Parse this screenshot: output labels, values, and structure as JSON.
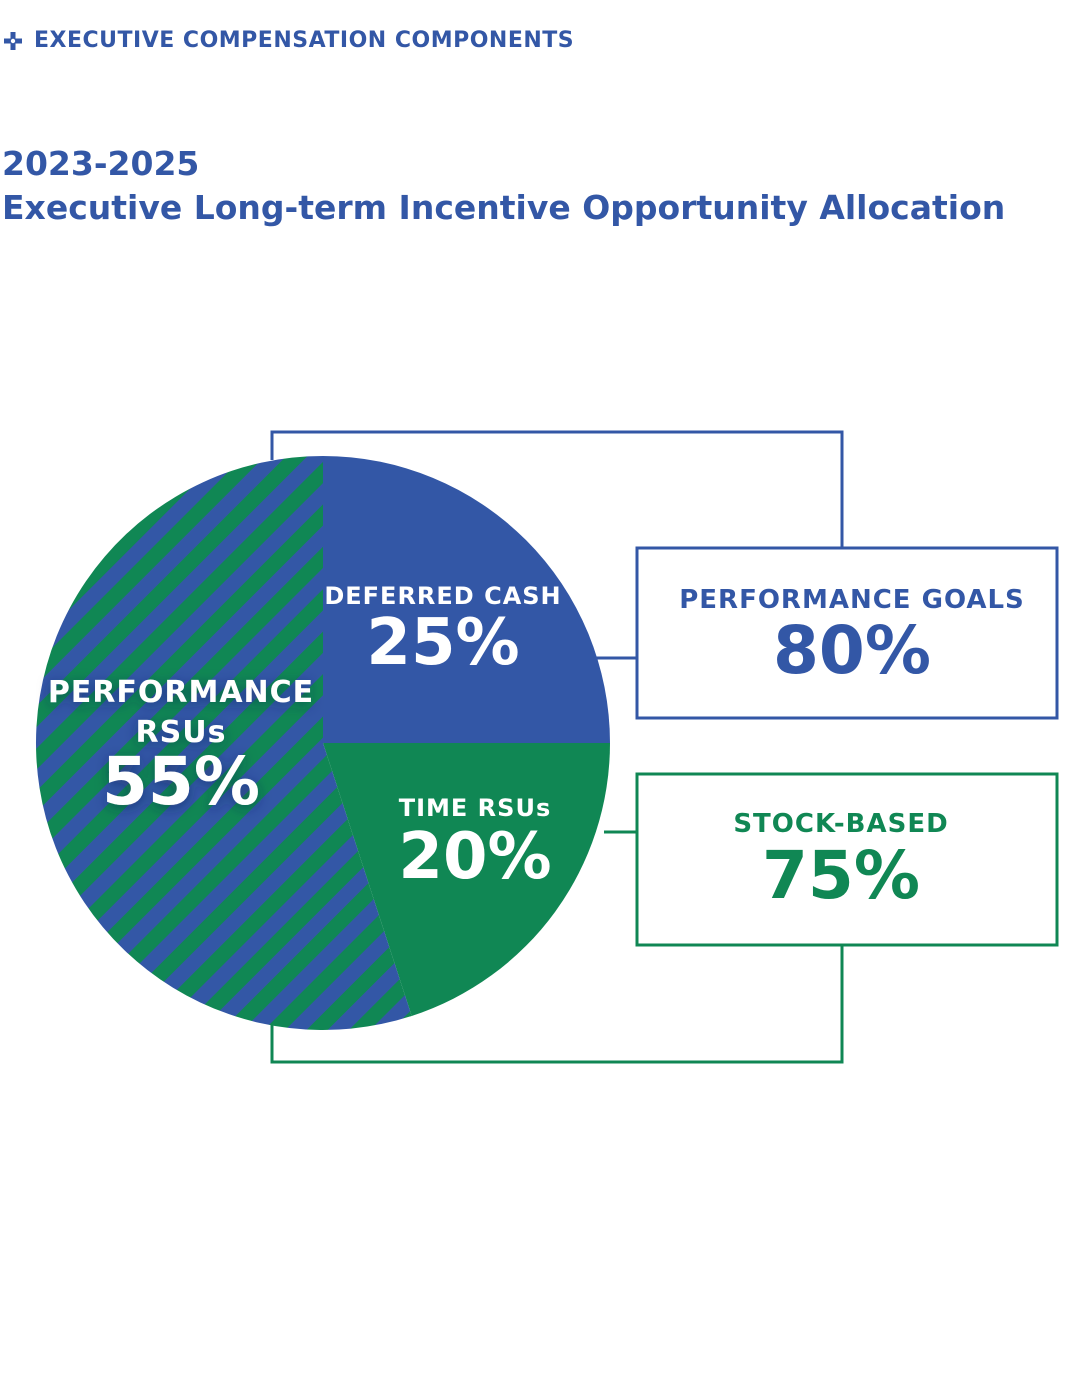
{
  "section": {
    "label": "EXECUTIVE COMPENSATION COMPONENTS",
    "icon": "plus-icon"
  },
  "title": {
    "line1": "2023-2025",
    "line2": "Executive Long-term Incentive Opportunity Allocation"
  },
  "colors": {
    "blue": "#3357a6",
    "green": "#108754",
    "white": "#ffffff"
  },
  "chart_data": {
    "type": "pie",
    "title": "2023-2025 Executive Long-term Incentive Opportunity Allocation",
    "slices": [
      {
        "name": "DEFERRED CASH",
        "value": 25,
        "label": "25%",
        "fill": "blue",
        "pattern": "solid"
      },
      {
        "name": "TIME RSUs",
        "value": 20,
        "label": "20%",
        "fill": "green",
        "pattern": "solid"
      },
      {
        "name": "PERFORMANCE RSUs",
        "value": 55,
        "label": "55%",
        "fill": "blue-green",
        "pattern": "striped"
      }
    ],
    "groupings": [
      {
        "name": "PERFORMANCE GOALS",
        "value": 80,
        "label": "80%",
        "members": [
          "DEFERRED CASH",
          "PERFORMANCE RSUs"
        ],
        "color": "blue"
      },
      {
        "name": "STOCK-BASED",
        "value": 75,
        "label": "75%",
        "members": [
          "TIME RSUs",
          "PERFORMANCE RSUs"
        ],
        "color": "green"
      }
    ],
    "slice_label_lines": {
      "performance_rsus_line1": "PERFORMANCE",
      "performance_rsus_line2": "RSUs"
    }
  }
}
